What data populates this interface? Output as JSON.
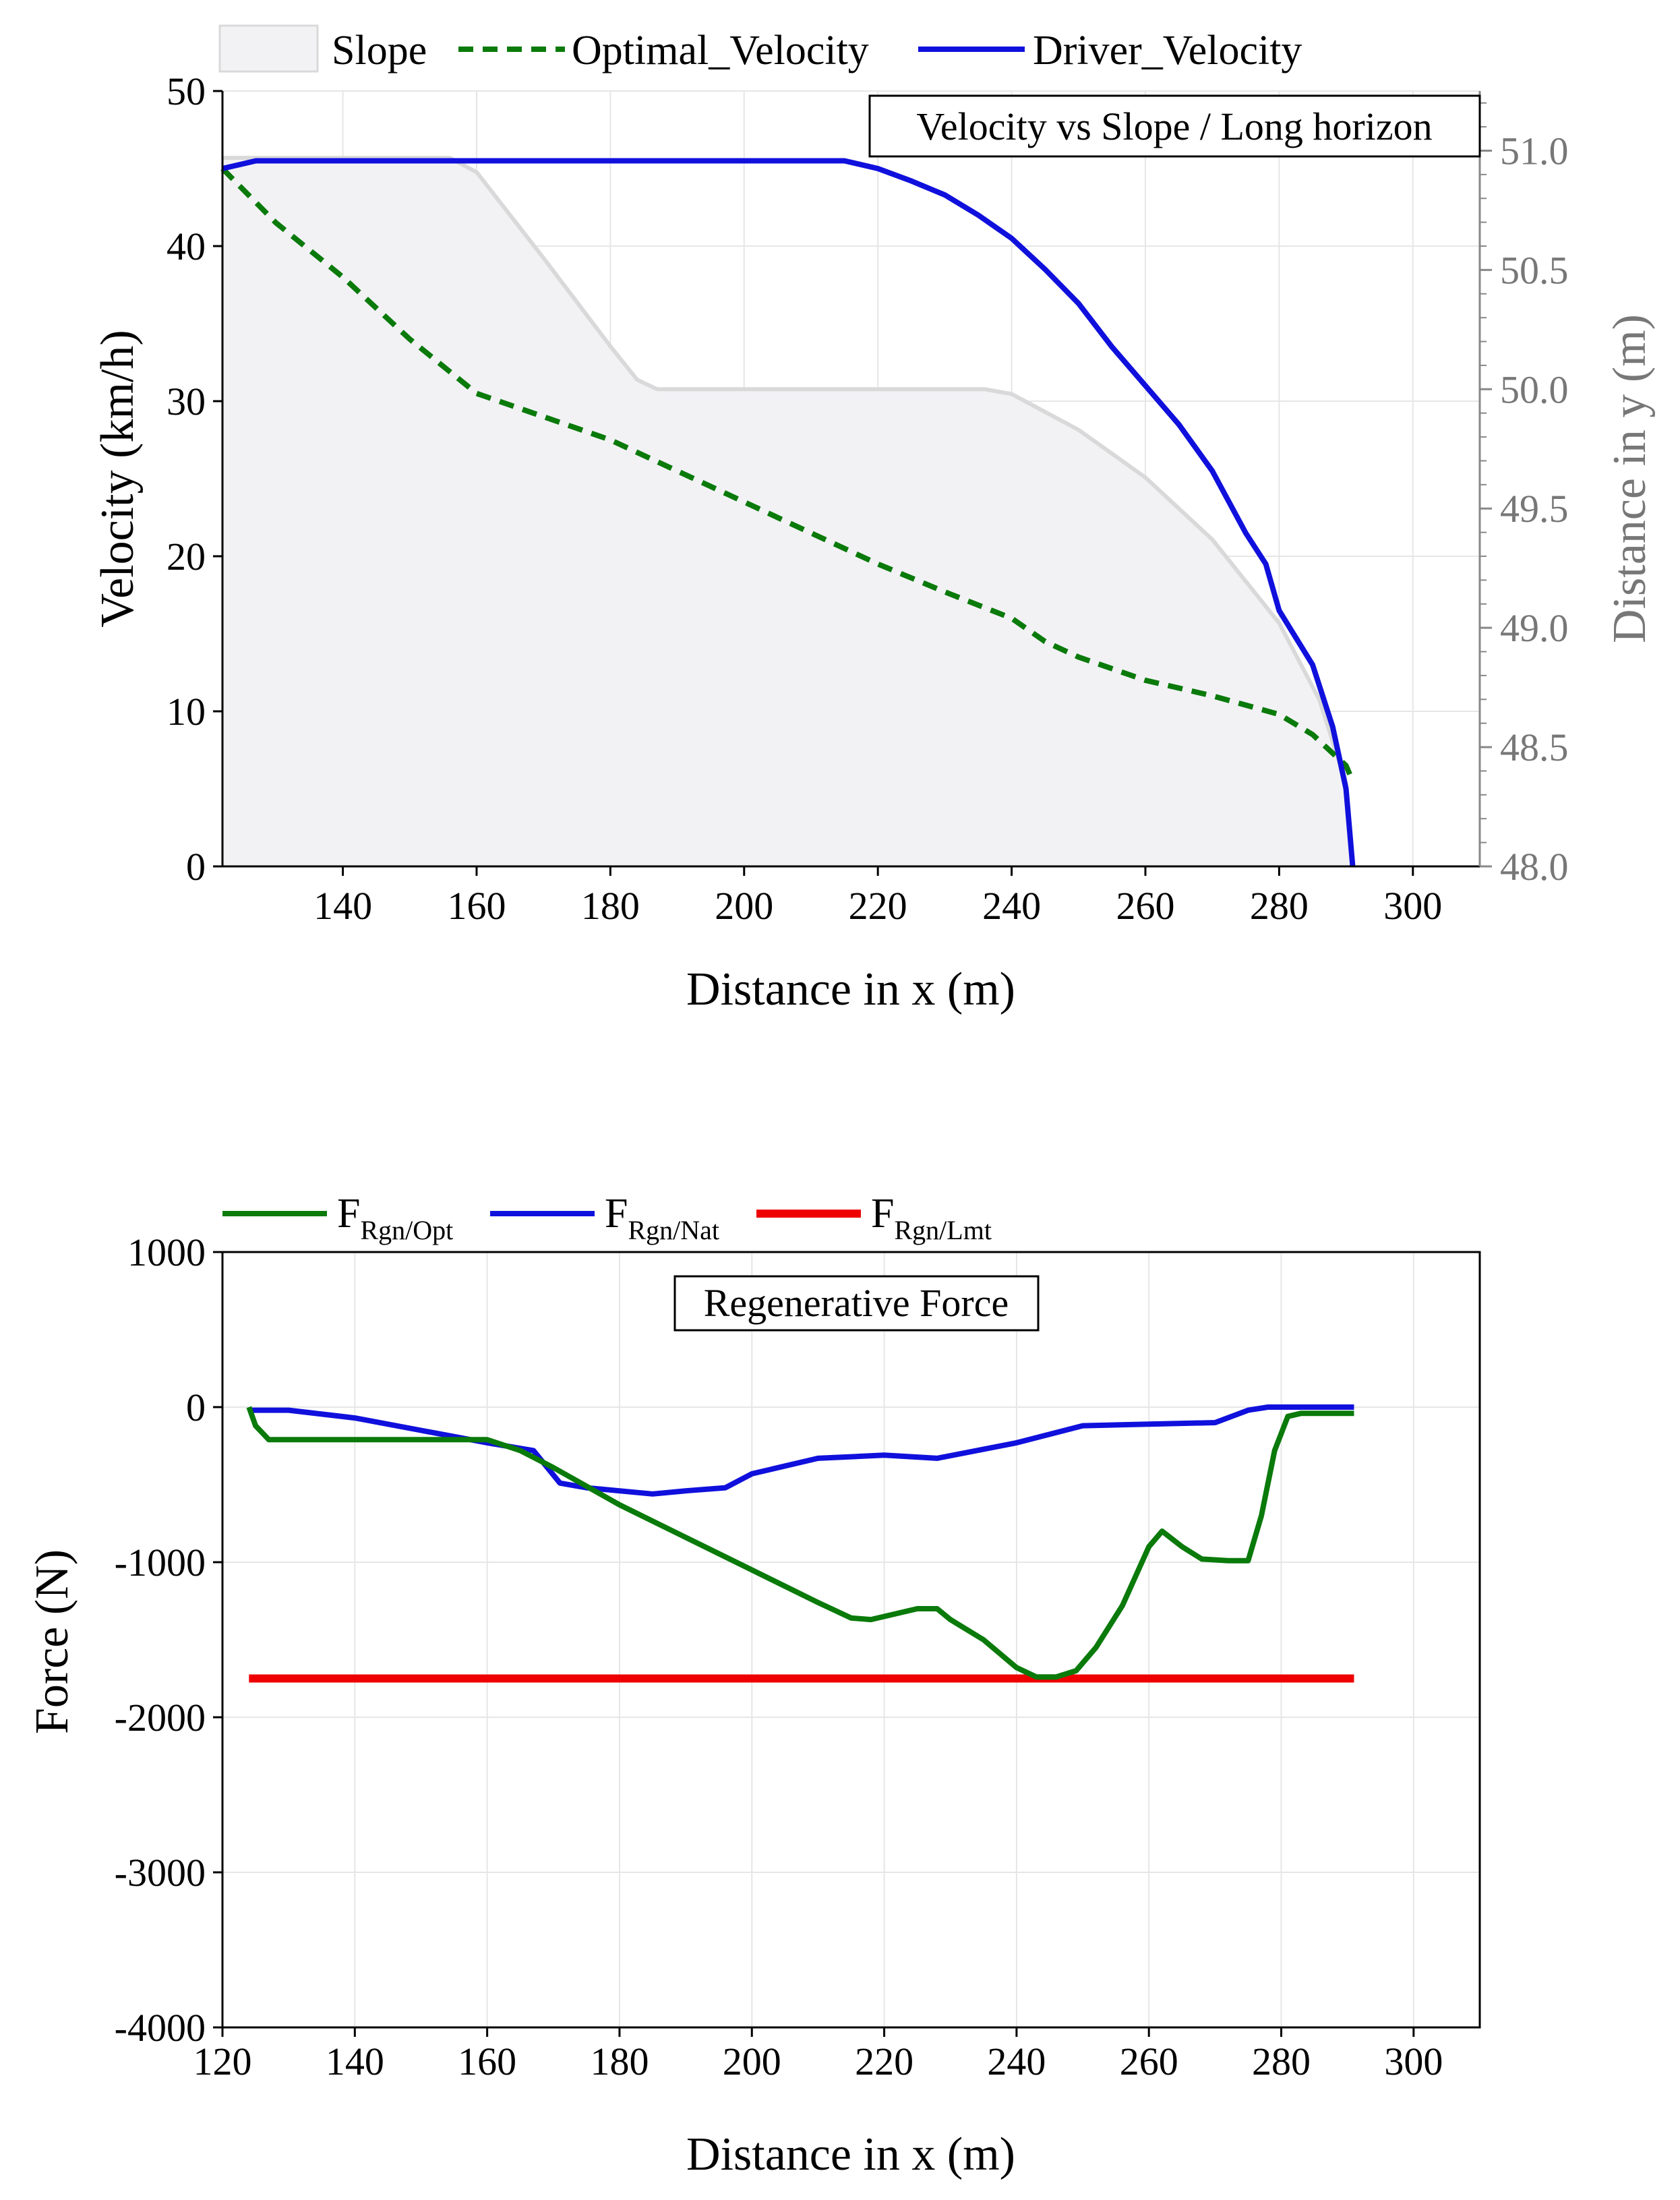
{
  "chart_data": [
    {
      "type": "line",
      "title": "Velocity vs Slope / Long horizon",
      "xlabel": "Distance in x (m)",
      "ylabel": "Velocity (km/h)",
      "y2label": "Distance in y (m)",
      "xlim": [
        122,
        310
      ],
      "ylim": [
        0,
        50
      ],
      "y2lim": [
        48.0,
        51.25
      ],
      "x_ticks": [
        140,
        160,
        180,
        200,
        220,
        240,
        260,
        280,
        300
      ],
      "y_ticks": [
        0,
        10,
        20,
        30,
        40,
        50
      ],
      "y2_ticks": [
        "48.0",
        "48.5",
        "49.0",
        "49.5",
        "50.0",
        "50.5",
        "51.0"
      ],
      "grid": true,
      "legend": "top",
      "colors": {
        "slope_fill": "#f2f2f5",
        "slope_line": "#d9d9d9",
        "optimal": "#0a7a0a",
        "driver": "#1010dd"
      },
      "series": [
        {
          "name": "Slope",
          "axis": "y2",
          "style": "area",
          "x": [
            122,
            156,
            160,
            170,
            180,
            184,
            187,
            190,
            236,
            240,
            250,
            260,
            270,
            280,
            286,
            290,
            291
          ],
          "y": [
            50.97,
            50.97,
            50.91,
            50.55,
            50.18,
            50.04,
            50.0,
            50.0,
            50.0,
            49.98,
            49.83,
            49.63,
            49.37,
            49.02,
            48.7,
            48.35,
            48.0
          ]
        },
        {
          "name": "Optimal_Velocity",
          "axis": "y",
          "style": "dashed",
          "x": [
            122,
            130,
            140,
            150,
            160,
            170,
            180,
            190,
            200,
            210,
            220,
            230,
            240,
            245,
            250,
            260,
            270,
            280,
            285,
            290,
            291
          ],
          "y": [
            45,
            41.5,
            38,
            34,
            30.5,
            29,
            27.5,
            25.5,
            23.5,
            21.5,
            19.5,
            17.7,
            16,
            14.5,
            13.5,
            12,
            11,
            9.8,
            8.5,
            6.5,
            5.5
          ]
        },
        {
          "name": "Driver_Velocity",
          "axis": "y",
          "style": "solid",
          "x": [
            122,
            125,
            127,
            140,
            160,
            180,
            200,
            215,
            220,
            225,
            230,
            235,
            240,
            245,
            250,
            255,
            260,
            265,
            270,
            275,
            278,
            280,
            285,
            288,
            290,
            291
          ],
          "y": [
            45,
            45.3,
            45.5,
            45.5,
            45.5,
            45.5,
            45.5,
            45.5,
            45,
            44.2,
            43.3,
            42,
            40.5,
            38.5,
            36.3,
            33.5,
            31,
            28.5,
            25.5,
            21.5,
            19.5,
            16.5,
            13,
            9,
            5,
            0
          ]
        }
      ]
    },
    {
      "type": "line",
      "title": "Regenerative Force",
      "xlabel": "Distance in x (m)",
      "ylabel": "Force (N)",
      "xlim": [
        120,
        310
      ],
      "ylim": [
        -4000,
        1000
      ],
      "x_ticks": [
        120,
        140,
        160,
        180,
        200,
        220,
        240,
        260,
        280,
        300
      ],
      "y_ticks": [
        1000,
        0,
        -1000,
        -2000,
        -3000,
        -4000
      ],
      "grid": true,
      "legend": "top",
      "legend_entries": [
        {
          "base": "F",
          "sub": "Rgn/Opt"
        },
        {
          "base": "F",
          "sub": "Rgn/Nat"
        },
        {
          "base": "F",
          "sub": "Rgn/Lmt"
        }
      ],
      "colors": {
        "opt": "#0a7a0a",
        "nat": "#1010dd",
        "lmt": "#ee0000"
      },
      "series": [
        {
          "name": "F_Rgn/Opt",
          "x": [
            124,
            125,
            127,
            140,
            160,
            165,
            170,
            180,
            190,
            200,
            210,
            215,
            218,
            220,
            225,
            228,
            230,
            235,
            240,
            243,
            246,
            249,
            252,
            256,
            260,
            262,
            265,
            268,
            272,
            275,
            277,
            279,
            281,
            283,
            291
          ],
          "y": [
            0,
            -120,
            -210,
            -210,
            -210,
            -280,
            -390,
            -630,
            -840,
            -1050,
            -1260,
            -1360,
            -1370,
            -1350,
            -1300,
            -1300,
            -1370,
            -1500,
            -1680,
            -1740,
            -1740,
            -1700,
            -1550,
            -1280,
            -900,
            -800,
            -900,
            -980,
            -990,
            -990,
            -700,
            -280,
            -60,
            -40,
            -40
          ]
        },
        {
          "name": "F_Rgn/Nat",
          "x": [
            124,
            130,
            140,
            150,
            160,
            167,
            171,
            175,
            180,
            185,
            190,
            196,
            200,
            210,
            220,
            228,
            240,
            250,
            260,
            270,
            275,
            278,
            291
          ],
          "y": [
            -20,
            -20,
            -70,
            -150,
            -230,
            -280,
            -490,
            -520,
            -540,
            -560,
            -540,
            -520,
            -430,
            -330,
            -310,
            -330,
            -230,
            -120,
            -110,
            -100,
            -20,
            0,
            0
          ]
        },
        {
          "name": "F_Rgn/Lmt",
          "x": [
            124,
            291
          ],
          "y": [
            -1750,
            -1750
          ]
        }
      ]
    }
  ]
}
